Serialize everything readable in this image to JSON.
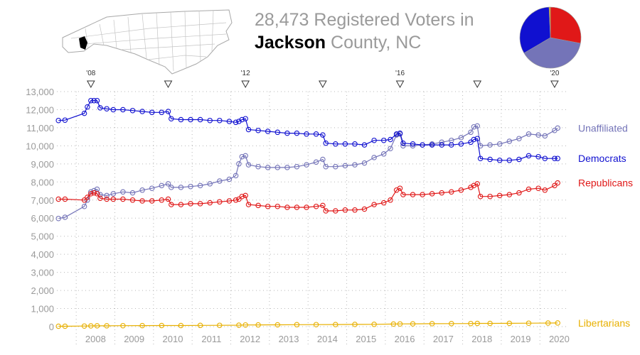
{
  "header": {
    "line1": "28,473 Registered Voters in",
    "county": "Jackson",
    "line2_rest": " County, NC"
  },
  "colors": {
    "democrats": "#1010d0",
    "republicans": "#e01818",
    "unaffiliated": "#7474b8",
    "libertarians": "#e8b000",
    "axis_text": "#9a9a9a",
    "grid": "#b8b8b8"
  },
  "map": {
    "highlighted_county": "Jackson",
    "state": "North Carolina"
  },
  "pie": {
    "slices": [
      {
        "party": "Democrats",
        "color": "#1010d0",
        "value": 9300
      },
      {
        "party": "Republicans",
        "color": "#e01818",
        "value": 7950
      },
      {
        "party": "Unaffiliated",
        "color": "#7474b8",
        "value": 10980
      },
      {
        "party": "Libertarians",
        "color": "#e8b000",
        "value": 200
      }
    ]
  },
  "chart_data": {
    "type": "line",
    "ylim": [
      0,
      13000
    ],
    "xlim": [
      2007.5,
      2020.75
    ],
    "y_ticks": [
      0,
      1000,
      2000,
      3000,
      4000,
      5000,
      6000,
      7000,
      8000,
      9000,
      10000,
      11000,
      12000,
      13000
    ],
    "y_tick_labels": [
      "0",
      "1,000",
      "2,000",
      "3,000",
      "4,000",
      "5,000",
      "6,000",
      "7,000",
      "8,000",
      "9,000",
      "10,000",
      "11,000",
      "12,000",
      "13,000"
    ],
    "x_tick_labels": [
      {
        "label": "2008",
        "x": 2008
      },
      {
        "label": "2009",
        "x": 2009
      },
      {
        "label": "2010",
        "x": 2010
      },
      {
        "label": "2011",
        "x": 2011
      },
      {
        "label": "2012",
        "x": 2012
      },
      {
        "label": "2013",
        "x": 2013
      },
      {
        "label": "2014",
        "x": 2014
      },
      {
        "label": "2015",
        "x": 2015
      },
      {
        "label": "2016",
        "x": 2016
      },
      {
        "label": "2017",
        "x": 2017
      },
      {
        "label": "2018",
        "x": 2018
      },
      {
        "label": "2019",
        "x": 2019
      },
      {
        "label": "2020",
        "x": 2020
      }
    ],
    "elections": [
      {
        "x": 2008.38,
        "label": "'08"
      },
      {
        "x": 2010.38,
        "label": ""
      },
      {
        "x": 2012.38,
        "label": "'12"
      },
      {
        "x": 2014.38,
        "label": ""
      },
      {
        "x": 2016.38,
        "label": "'16"
      },
      {
        "x": 2018.38,
        "label": ""
      },
      {
        "x": 2020.38,
        "label": "'20"
      }
    ],
    "grid": true,
    "series": [
      {
        "name": "Unaffiliated",
        "color": "#7474b8",
        "points": [
          [
            2007.54,
            5980
          ],
          [
            2007.71,
            6050
          ],
          [
            2008.21,
            6650
          ],
          [
            2008.29,
            7000
          ],
          [
            2008.38,
            7450
          ],
          [
            2008.46,
            7520
          ],
          [
            2008.54,
            7600
          ],
          [
            2008.62,
            7300
          ],
          [
            2008.79,
            7250
          ],
          [
            2008.96,
            7350
          ],
          [
            2009.21,
            7450
          ],
          [
            2009.46,
            7400
          ],
          [
            2009.71,
            7550
          ],
          [
            2009.96,
            7650
          ],
          [
            2010.21,
            7800
          ],
          [
            2010.38,
            7900
          ],
          [
            2010.46,
            7700
          ],
          [
            2010.71,
            7700
          ],
          [
            2010.96,
            7750
          ],
          [
            2011.21,
            7800
          ],
          [
            2011.46,
            7900
          ],
          [
            2011.71,
            8050
          ],
          [
            2011.96,
            8150
          ],
          [
            2012.13,
            8350
          ],
          [
            2012.21,
            9000
          ],
          [
            2012.29,
            9400
          ],
          [
            2012.38,
            9450
          ],
          [
            2012.46,
            8950
          ],
          [
            2012.71,
            8850
          ],
          [
            2012.96,
            8800
          ],
          [
            2013.21,
            8800
          ],
          [
            2013.46,
            8800
          ],
          [
            2013.71,
            8850
          ],
          [
            2013.96,
            8950
          ],
          [
            2014.21,
            9100
          ],
          [
            2014.38,
            9250
          ],
          [
            2014.46,
            8850
          ],
          [
            2014.71,
            8850
          ],
          [
            2014.96,
            8900
          ],
          [
            2015.21,
            8950
          ],
          [
            2015.46,
            9050
          ],
          [
            2015.71,
            9350
          ],
          [
            2015.96,
            9550
          ],
          [
            2016.13,
            9850
          ],
          [
            2016.29,
            10600
          ],
          [
            2016.38,
            10650
          ],
          [
            2016.46,
            10000
          ],
          [
            2016.71,
            10000
          ],
          [
            2016.96,
            10050
          ],
          [
            2017.21,
            10100
          ],
          [
            2017.46,
            10200
          ],
          [
            2017.71,
            10300
          ],
          [
            2017.96,
            10450
          ],
          [
            2018.21,
            10750
          ],
          [
            2018.29,
            11050
          ],
          [
            2018.38,
            11100
          ],
          [
            2018.46,
            10000
          ],
          [
            2018.71,
            10050
          ],
          [
            2018.96,
            10100
          ],
          [
            2019.21,
            10250
          ],
          [
            2019.46,
            10400
          ],
          [
            2019.71,
            10650
          ],
          [
            2019.96,
            10600
          ],
          [
            2020.13,
            10550
          ],
          [
            2020.38,
            10850
          ],
          [
            2020.46,
            10980
          ]
        ]
      },
      {
        "name": "Democrats",
        "color": "#1010d0",
        "points": [
          [
            2007.54,
            11400
          ],
          [
            2007.71,
            11420
          ],
          [
            2008.21,
            11800
          ],
          [
            2008.29,
            12150
          ],
          [
            2008.38,
            12500
          ],
          [
            2008.46,
            12500
          ],
          [
            2008.54,
            12500
          ],
          [
            2008.62,
            12100
          ],
          [
            2008.79,
            12050
          ],
          [
            2008.96,
            12000
          ],
          [
            2009.21,
            12000
          ],
          [
            2009.46,
            11950
          ],
          [
            2009.71,
            11900
          ],
          [
            2009.96,
            11850
          ],
          [
            2010.21,
            11850
          ],
          [
            2010.38,
            11900
          ],
          [
            2010.46,
            11500
          ],
          [
            2010.71,
            11450
          ],
          [
            2010.96,
            11450
          ],
          [
            2011.21,
            11450
          ],
          [
            2011.46,
            11400
          ],
          [
            2011.71,
            11400
          ],
          [
            2011.96,
            11350
          ],
          [
            2012.13,
            11300
          ],
          [
            2012.21,
            11350
          ],
          [
            2012.29,
            11450
          ],
          [
            2012.38,
            11500
          ],
          [
            2012.46,
            10900
          ],
          [
            2012.71,
            10850
          ],
          [
            2012.96,
            10800
          ],
          [
            2013.21,
            10750
          ],
          [
            2013.46,
            10700
          ],
          [
            2013.71,
            10700
          ],
          [
            2013.96,
            10650
          ],
          [
            2014.21,
            10650
          ],
          [
            2014.38,
            10600
          ],
          [
            2014.46,
            10150
          ],
          [
            2014.71,
            10100
          ],
          [
            2014.96,
            10100
          ],
          [
            2015.21,
            10100
          ],
          [
            2015.46,
            10050
          ],
          [
            2015.71,
            10300
          ],
          [
            2015.96,
            10300
          ],
          [
            2016.13,
            10350
          ],
          [
            2016.29,
            10650
          ],
          [
            2016.38,
            10700
          ],
          [
            2016.46,
            10150
          ],
          [
            2016.71,
            10100
          ],
          [
            2016.96,
            10050
          ],
          [
            2017.21,
            10050
          ],
          [
            2017.46,
            10050
          ],
          [
            2017.71,
            10050
          ],
          [
            2017.96,
            10100
          ],
          [
            2018.21,
            10200
          ],
          [
            2018.29,
            10350
          ],
          [
            2018.38,
            10400
          ],
          [
            2018.46,
            9300
          ],
          [
            2018.71,
            9250
          ],
          [
            2018.96,
            9200
          ],
          [
            2019.21,
            9200
          ],
          [
            2019.46,
            9250
          ],
          [
            2019.71,
            9450
          ],
          [
            2019.96,
            9400
          ],
          [
            2020.13,
            9300
          ],
          [
            2020.38,
            9300
          ],
          [
            2020.46,
            9300
          ]
        ]
      },
      {
        "name": "Republicans",
        "color": "#e01818",
        "points": [
          [
            2007.54,
            7050
          ],
          [
            2007.71,
            7050
          ],
          [
            2008.21,
            7000
          ],
          [
            2008.29,
            7150
          ],
          [
            2008.38,
            7350
          ],
          [
            2008.46,
            7400
          ],
          [
            2008.54,
            7350
          ],
          [
            2008.62,
            7100
          ],
          [
            2008.79,
            7050
          ],
          [
            2008.96,
            7050
          ],
          [
            2009.21,
            7050
          ],
          [
            2009.46,
            7000
          ],
          [
            2009.71,
            6950
          ],
          [
            2009.96,
            6950
          ],
          [
            2010.21,
            7000
          ],
          [
            2010.38,
            7050
          ],
          [
            2010.46,
            6750
          ],
          [
            2010.71,
            6750
          ],
          [
            2010.96,
            6800
          ],
          [
            2011.21,
            6800
          ],
          [
            2011.46,
            6850
          ],
          [
            2011.71,
            6900
          ],
          [
            2011.96,
            6950
          ],
          [
            2012.13,
            7000
          ],
          [
            2012.21,
            7050
          ],
          [
            2012.29,
            7200
          ],
          [
            2012.38,
            7250
          ],
          [
            2012.46,
            6750
          ],
          [
            2012.71,
            6700
          ],
          [
            2012.96,
            6650
          ],
          [
            2013.21,
            6650
          ],
          [
            2013.46,
            6600
          ],
          [
            2013.71,
            6600
          ],
          [
            2013.96,
            6600
          ],
          [
            2014.21,
            6650
          ],
          [
            2014.38,
            6700
          ],
          [
            2014.46,
            6400
          ],
          [
            2014.71,
            6400
          ],
          [
            2014.96,
            6450
          ],
          [
            2015.21,
            6450
          ],
          [
            2015.46,
            6500
          ],
          [
            2015.71,
            6750
          ],
          [
            2015.96,
            6850
          ],
          [
            2016.13,
            7000
          ],
          [
            2016.29,
            7550
          ],
          [
            2016.38,
            7650
          ],
          [
            2016.46,
            7300
          ],
          [
            2016.71,
            7300
          ],
          [
            2016.96,
            7300
          ],
          [
            2017.21,
            7350
          ],
          [
            2017.46,
            7400
          ],
          [
            2017.71,
            7450
          ],
          [
            2017.96,
            7550
          ],
          [
            2018.21,
            7700
          ],
          [
            2018.29,
            7800
          ],
          [
            2018.38,
            7900
          ],
          [
            2018.46,
            7200
          ],
          [
            2018.71,
            7200
          ],
          [
            2018.96,
            7250
          ],
          [
            2019.21,
            7300
          ],
          [
            2019.46,
            7400
          ],
          [
            2019.71,
            7600
          ],
          [
            2019.96,
            7650
          ],
          [
            2020.13,
            7550
          ],
          [
            2020.38,
            7800
          ],
          [
            2020.46,
            7950
          ]
        ]
      },
      {
        "name": "Libertarians",
        "color": "#e8b000",
        "points": [
          [
            2007.54,
            20
          ],
          [
            2007.71,
            20
          ],
          [
            2008.21,
            30
          ],
          [
            2008.38,
            40
          ],
          [
            2008.54,
            45
          ],
          [
            2008.79,
            45
          ],
          [
            2009.21,
            50
          ],
          [
            2009.71,
            55
          ],
          [
            2010.21,
            60
          ],
          [
            2010.71,
            60
          ],
          [
            2011.21,
            65
          ],
          [
            2011.71,
            70
          ],
          [
            2012.21,
            80
          ],
          [
            2012.38,
            90
          ],
          [
            2012.71,
            95
          ],
          [
            2013.21,
            100
          ],
          [
            2013.71,
            105
          ],
          [
            2014.21,
            110
          ],
          [
            2014.71,
            115
          ],
          [
            2015.21,
            120
          ],
          [
            2015.71,
            125
          ],
          [
            2016.21,
            140
          ],
          [
            2016.38,
            150
          ],
          [
            2016.71,
            155
          ],
          [
            2017.21,
            160
          ],
          [
            2017.71,
            165
          ],
          [
            2018.21,
            170
          ],
          [
            2018.38,
            175
          ],
          [
            2018.71,
            175
          ],
          [
            2019.21,
            180
          ],
          [
            2019.71,
            190
          ],
          [
            2020.21,
            195
          ],
          [
            2020.46,
            200
          ]
        ]
      }
    ]
  }
}
